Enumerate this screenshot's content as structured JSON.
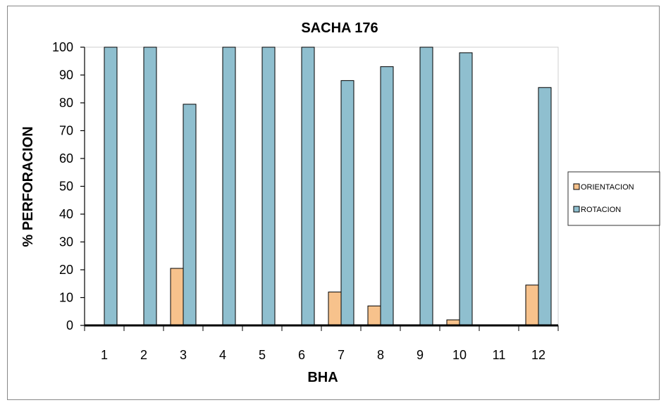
{
  "chart_data": {
    "type": "bar",
    "title": "SACHA 176",
    "xlabel": "BHA",
    "ylabel": "% PERFORACION",
    "categories": [
      "1",
      "2",
      "3",
      "4",
      "5",
      "6",
      "7",
      "8",
      "9",
      "10",
      "11",
      "12"
    ],
    "ylim": [
      0,
      100
    ],
    "yticks": [
      0,
      10,
      20,
      30,
      40,
      50,
      60,
      70,
      80,
      90,
      100
    ],
    "grid": false,
    "legend_position": "right",
    "series": [
      {
        "name": "ORIENTACION",
        "color": "#f7c28c",
        "values": [
          0,
          0,
          20.5,
          0,
          0,
          0,
          12,
          7,
          0,
          2,
          0,
          14.5
        ]
      },
      {
        "name": "ROTACION",
        "color": "#8fbfcf",
        "values": [
          100,
          100,
          79.5,
          100,
          100,
          100,
          88,
          93,
          100,
          98,
          0,
          85.5
        ]
      }
    ]
  }
}
